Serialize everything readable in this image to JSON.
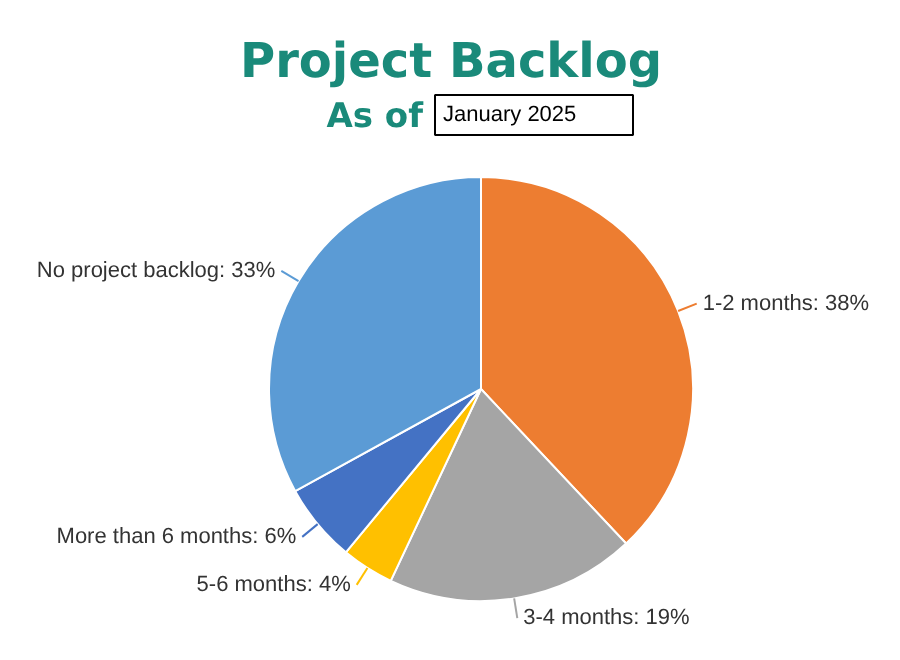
{
  "chart_data": {
    "type": "pie",
    "title": "Project Backlog",
    "subtitle": "As of",
    "annotations": [
      "January 2025"
    ],
    "categories": [
      "1-2 months",
      "3-4 months",
      "5-6 months",
      "More than 6 months",
      "No project backlog"
    ],
    "values": [
      38,
      19,
      4,
      6,
      33
    ],
    "value_labels": [
      "38%",
      "19%",
      "4%",
      "6%",
      "33%"
    ],
    "colors": [
      "#ed7d31",
      "#a5a5a5",
      "#ffc000",
      "#4472c4",
      "#5b9bd5"
    ]
  }
}
